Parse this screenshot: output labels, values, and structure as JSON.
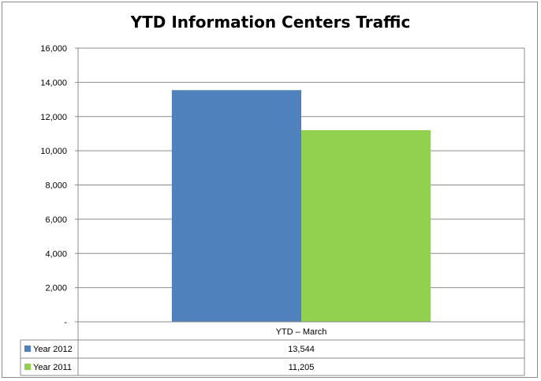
{
  "chart_data": {
    "type": "bar",
    "title": "YTD Information Centers Traffic",
    "categories": [
      "YTD – March"
    ],
    "series": [
      {
        "name": "Year 2012",
        "values": [
          13544
        ],
        "value_labels": [
          "13,544"
        ],
        "color": "#4f81bd"
      },
      {
        "name": "Year 2011",
        "values": [
          11205
        ],
        "value_labels": [
          "11,205"
        ],
        "color": "#92d050"
      }
    ],
    "ylim": [
      0,
      16000
    ],
    "yticks": [
      0,
      2000,
      4000,
      6000,
      8000,
      10000,
      12000,
      14000,
      16000
    ],
    "ytick_labels": [
      "-",
      "2,000",
      "4,000",
      "6,000",
      "8,000",
      "10,000",
      "12,000",
      "14,000",
      "16,000"
    ],
    "grid": true,
    "legend": "data-table"
  }
}
